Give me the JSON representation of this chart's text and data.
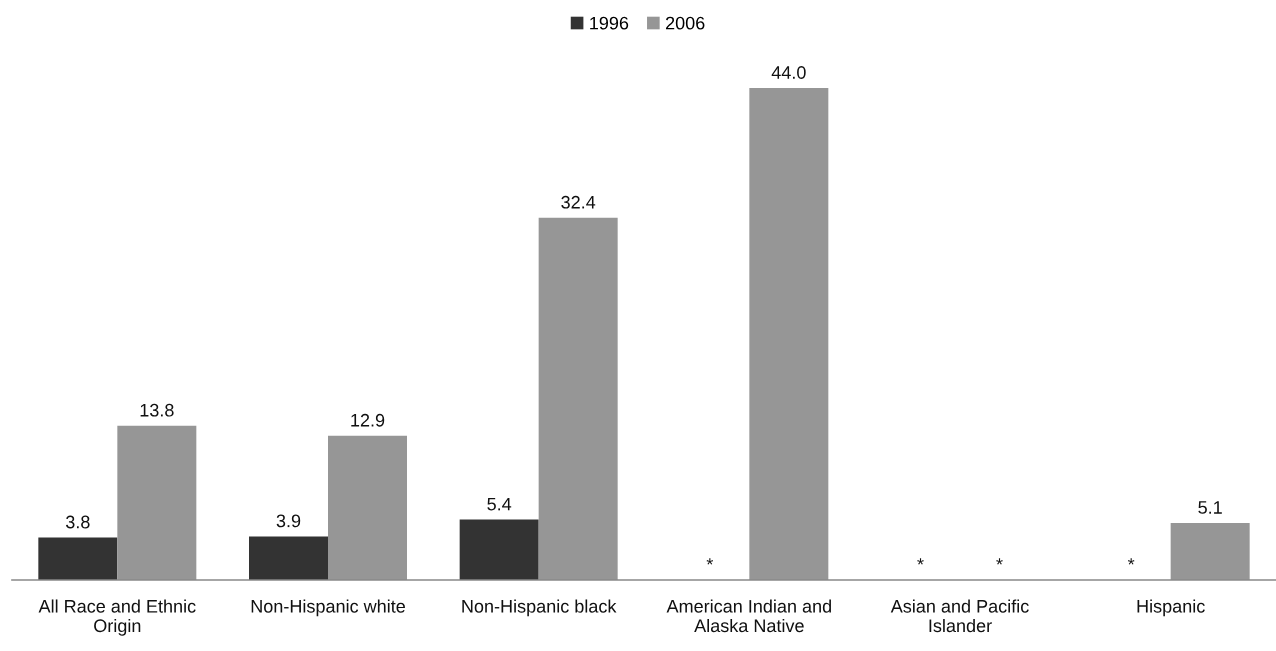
{
  "chart_data": {
    "type": "bar",
    "categories": [
      "All Race and Ethnic Origin",
      "Non-Hispanic white",
      "Non-Hispanic black",
      "American Indian and Alaska Native",
      "Asian and Pacific Islander",
      "Hispanic"
    ],
    "series": [
      {
        "name": "1996",
        "color": "#333333",
        "values": [
          3.8,
          3.9,
          5.4,
          null,
          null,
          null
        ],
        "value_labels": [
          "3.8",
          "3.9",
          "5.4",
          "*",
          "*",
          "*"
        ]
      },
      {
        "name": "2006",
        "color": "#969696",
        "values": [
          13.8,
          12.9,
          32.4,
          44.0,
          null,
          5.1
        ],
        "value_labels": [
          "13.8",
          "12.9",
          "32.4",
          "44.0",
          "*",
          "5.1"
        ]
      }
    ],
    "legend": "top",
    "tick_labels": "x"
  }
}
